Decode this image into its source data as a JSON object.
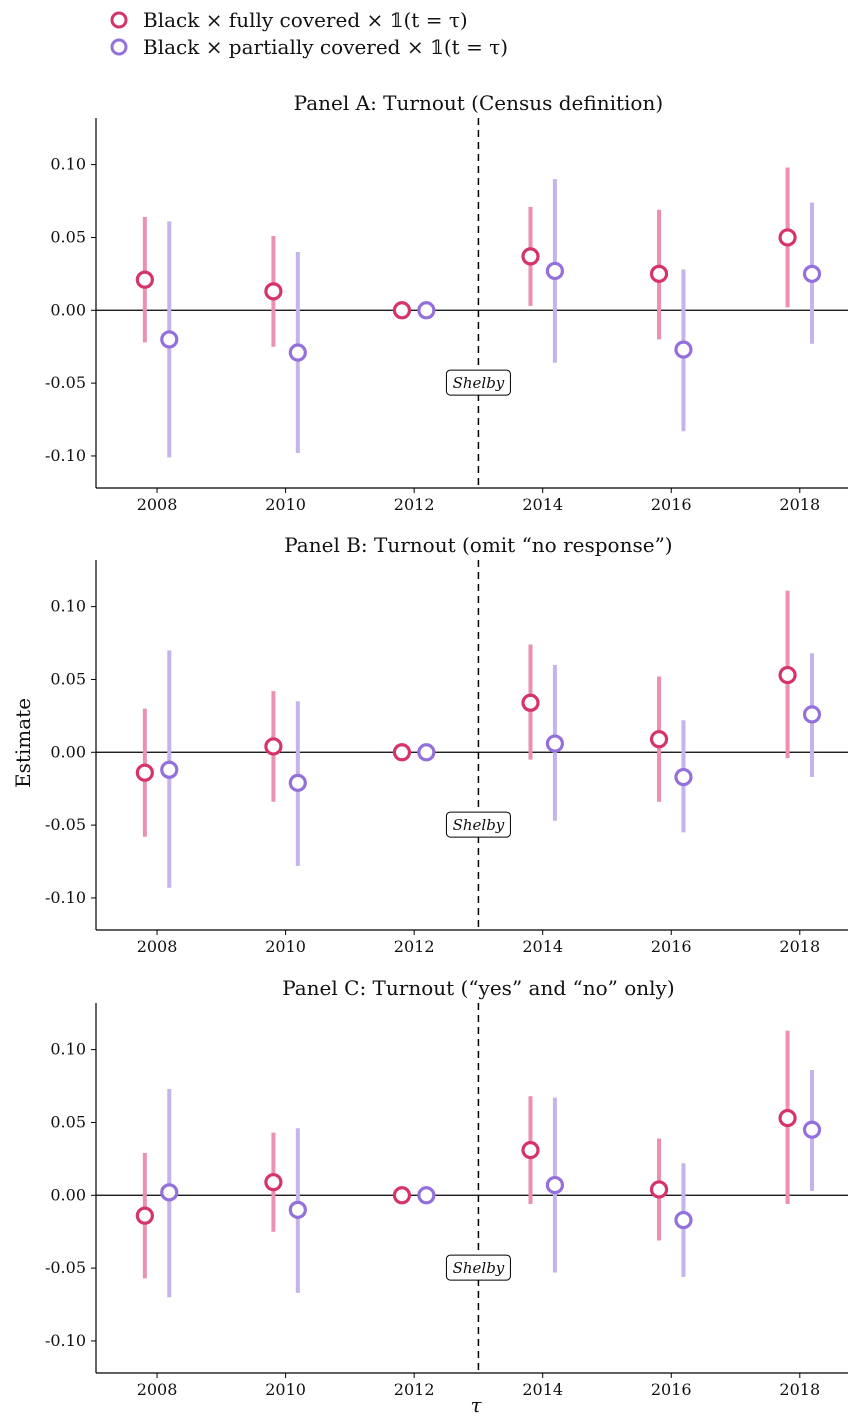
{
  "legend": {
    "position": "top-left",
    "items": [
      {
        "label": "Black × fully covered × 𝟙(t = τ)",
        "series": "fully",
        "color": "#d6336c"
      },
      {
        "label": "Black × partially covered × 𝟙(t = τ)",
        "series": "partially",
        "color": "#9370db"
      }
    ]
  },
  "colors": {
    "fully_point": "#d6336c",
    "fully_ci": "#ec8fb3",
    "partially_point": "#9370db",
    "partially_ci": "#c5b3ec",
    "zero_line": "#000000",
    "event_line": "#000000"
  },
  "ylabel": "Estimate",
  "xlabel": "τ",
  "chart_data": [
    {
      "type": "scatter",
      "title": "Panel A: Turnout (Census definition)",
      "x": [
        2008,
        2010,
        2012,
        2014,
        2016,
        2018
      ],
      "xticks": [
        "2008",
        "2010",
        "2012",
        "2014",
        "2016",
        "2018"
      ],
      "yticks": [
        "0.10",
        "0.05",
        "0.00",
        "-0.05",
        "-0.10"
      ],
      "ylim": [
        -0.122,
        0.132
      ],
      "event": {
        "x": 2013,
        "label": "Shelby",
        "y": -0.05
      },
      "series": [
        {
          "key": "fully",
          "name": "Black × fully covered × 𝟙(t = τ)",
          "estimate": [
            0.021,
            0.013,
            0.0,
            0.037,
            0.025,
            0.05
          ],
          "ci_low": [
            -0.022,
            -0.025,
            0.0,
            0.003,
            -0.02,
            0.002
          ],
          "ci_high": [
            0.064,
            0.051,
            0.0,
            0.071,
            0.069,
            0.098
          ]
        },
        {
          "key": "partially",
          "name": "Black × partially covered × 𝟙(t = τ)",
          "estimate": [
            -0.02,
            -0.029,
            0.0,
            0.027,
            -0.027,
            0.025
          ],
          "ci_low": [
            -0.101,
            -0.098,
            0.0,
            -0.036,
            -0.083,
            -0.023
          ],
          "ci_high": [
            0.061,
            0.04,
            0.0,
            0.09,
            0.028,
            0.074
          ]
        }
      ]
    },
    {
      "type": "scatter",
      "title": "Panel B: Turnout (omit “no response”)",
      "x": [
        2008,
        2010,
        2012,
        2014,
        2016,
        2018
      ],
      "xticks": [
        "2008",
        "2010",
        "2012",
        "2014",
        "2016",
        "2018"
      ],
      "yticks": [
        "0.10",
        "0.05",
        "0.00",
        "-0.05",
        "-0.10"
      ],
      "ylim": [
        -0.122,
        0.132
      ],
      "event": {
        "x": 2013,
        "label": "Shelby",
        "y": -0.05
      },
      "series": [
        {
          "key": "fully",
          "name": "Black × fully covered × 𝟙(t = τ)",
          "estimate": [
            -0.014,
            0.004,
            0.0,
            0.034,
            0.009,
            0.053
          ],
          "ci_low": [
            -0.058,
            -0.034,
            0.0,
            -0.005,
            -0.034,
            -0.004
          ],
          "ci_high": [
            0.03,
            0.042,
            0.0,
            0.074,
            0.052,
            0.111
          ]
        },
        {
          "key": "partially",
          "name": "Black × partially covered × 𝟙(t = τ)",
          "estimate": [
            -0.012,
            -0.021,
            0.0,
            0.006,
            -0.017,
            0.026
          ],
          "ci_low": [
            -0.093,
            -0.078,
            0.0,
            -0.047,
            -0.055,
            -0.017
          ],
          "ci_high": [
            0.07,
            0.035,
            0.0,
            0.06,
            0.022,
            0.068
          ]
        }
      ]
    },
    {
      "type": "scatter",
      "title": "Panel C: Turnout (“yes” and “no” only)",
      "x": [
        2008,
        2010,
        2012,
        2014,
        2016,
        2018
      ],
      "xticks": [
        "2008",
        "2010",
        "2012",
        "2014",
        "2016",
        "2018"
      ],
      "yticks": [
        "0.10",
        "0.05",
        "0.00",
        "-0.05",
        "-0.10"
      ],
      "ylim": [
        -0.122,
        0.132
      ],
      "event": {
        "x": 2013,
        "label": "Shelby",
        "y": -0.05
      },
      "series": [
        {
          "key": "fully",
          "name": "Black × fully covered × 𝟙(t = τ)",
          "estimate": [
            -0.014,
            0.009,
            0.0,
            0.031,
            0.004,
            0.053
          ],
          "ci_low": [
            -0.057,
            -0.025,
            0.0,
            -0.006,
            -0.031,
            -0.006
          ],
          "ci_high": [
            0.029,
            0.043,
            0.0,
            0.068,
            0.039,
            0.113
          ]
        },
        {
          "key": "partially",
          "name": "Black × partially covered × 𝟙(t = τ)",
          "estimate": [
            0.002,
            -0.01,
            0.0,
            0.007,
            -0.017,
            0.045
          ],
          "ci_low": [
            -0.07,
            -0.067,
            0.0,
            -0.053,
            -0.056,
            0.003
          ],
          "ci_high": [
            0.073,
            0.046,
            0.0,
            0.067,
            0.022,
            0.086
          ]
        }
      ]
    }
  ]
}
